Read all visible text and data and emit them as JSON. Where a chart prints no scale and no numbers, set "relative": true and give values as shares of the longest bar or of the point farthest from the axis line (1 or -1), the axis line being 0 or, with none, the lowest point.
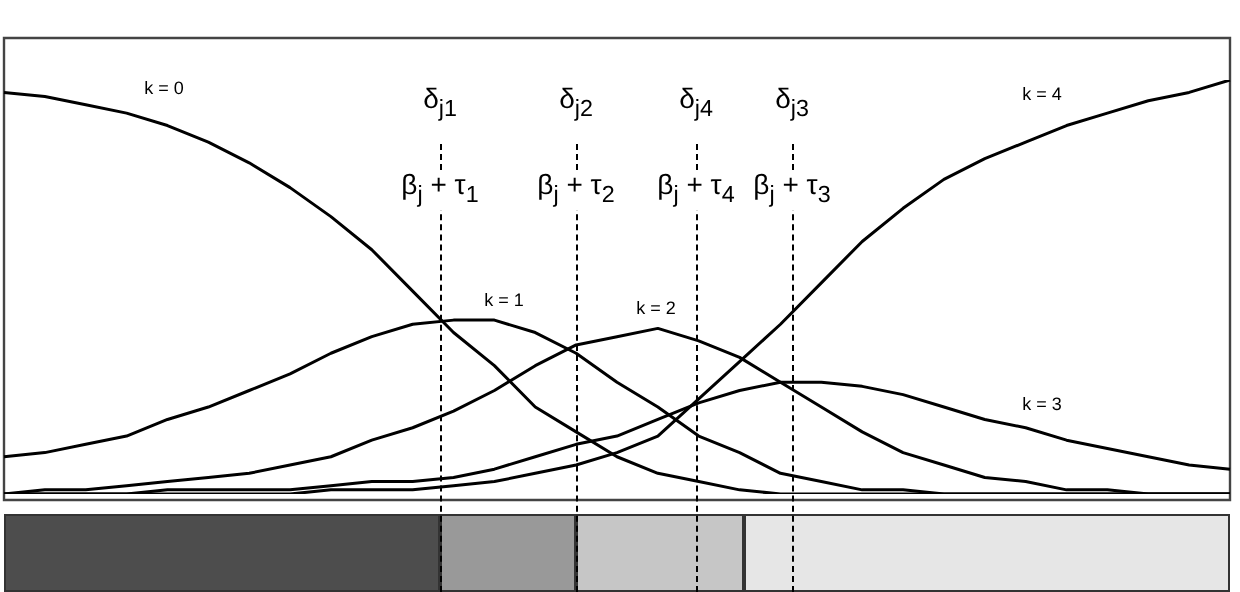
{
  "chart_data": {
    "type": "line",
    "relative": true,
    "marker": "none",
    "line_style": "solid",
    "categories": [
      null,
      null,
      null,
      null,
      null,
      null,
      null,
      null,
      null,
      null,
      null,
      null,
      null,
      null,
      null,
      null,
      null,
      null,
      null,
      null,
      null,
      null,
      null,
      null,
      null,
      null,
      null,
      null,
      null,
      null,
      null
    ],
    "series": [
      {
        "name": "k = 0",
        "color": "#000000",
        "values": [
          0.97,
          0.96,
          0.94,
          0.92,
          0.89,
          0.85,
          0.8,
          0.74,
          0.67,
          0.59,
          0.49,
          0.39,
          0.31,
          0.21,
          0.15,
          0.09,
          0.05,
          0.03,
          0.01,
          0,
          0,
          0,
          0,
          0,
          0,
          0,
          0,
          0,
          0,
          0,
          0
        ]
      },
      {
        "name": "k = 1",
        "color": "#000000",
        "values": [
          0.09,
          0.1,
          0.12,
          0.14,
          0.18,
          0.21,
          0.25,
          0.29,
          0.34,
          0.38,
          0.41,
          0.42,
          0.42,
          0.39,
          0.34,
          0.27,
          0.21,
          0.14,
          0.1,
          0.05,
          0.03,
          0.01,
          0.01,
          0,
          0,
          0,
          0,
          0,
          0,
          0,
          0
        ]
      },
      {
        "name": "k = 2",
        "color": "#000000",
        "values": [
          0,
          0.01,
          0.01,
          0.02,
          0.03,
          0.04,
          0.05,
          0.07,
          0.09,
          0.13,
          0.16,
          0.2,
          0.25,
          0.31,
          0.36,
          0.38,
          0.4,
          0.37,
          0.33,
          0.27,
          0.21,
          0.15,
          0.1,
          0.07,
          0.04,
          0.03,
          0.01,
          0.01,
          0,
          0,
          0
        ]
      },
      {
        "name": "k = 3",
        "color": "#000000",
        "values": [
          0,
          0,
          0,
          0,
          0.01,
          0.01,
          0.01,
          0.01,
          0.02,
          0.03,
          0.03,
          0.04,
          0.06,
          0.09,
          0.12,
          0.14,
          0.18,
          0.22,
          0.25,
          0.27,
          0.27,
          0.26,
          0.24,
          0.21,
          0.18,
          0.16,
          0.13,
          0.11,
          0.09,
          0.07,
          0.06
        ]
      },
      {
        "name": "k = 4",
        "color": "#000000",
        "values": [
          0,
          0,
          0,
          0,
          0,
          0,
          0,
          0,
          0.01,
          0.01,
          0.01,
          0.02,
          0.03,
          0.05,
          0.07,
          0.1,
          0.14,
          0.23,
          0.32,
          0.41,
          0.51,
          0.61,
          0.69,
          0.76,
          0.81,
          0.85,
          0.89,
          0.92,
          0.95,
          0.97,
          1
        ]
      }
    ],
    "annotations": [
      "δ$_{j1}$",
      "δ$_{j2}$",
      "δ$_{j4}$",
      "δ$_{j3}$",
      "β$_{j}$ + τ$_{1}$",
      "β$_{j}$ + τ$_{2}$",
      "β$_{j}$ + τ$_{4}$",
      "β$_{j}$ + τ$_{3}$"
    ]
  }
}
